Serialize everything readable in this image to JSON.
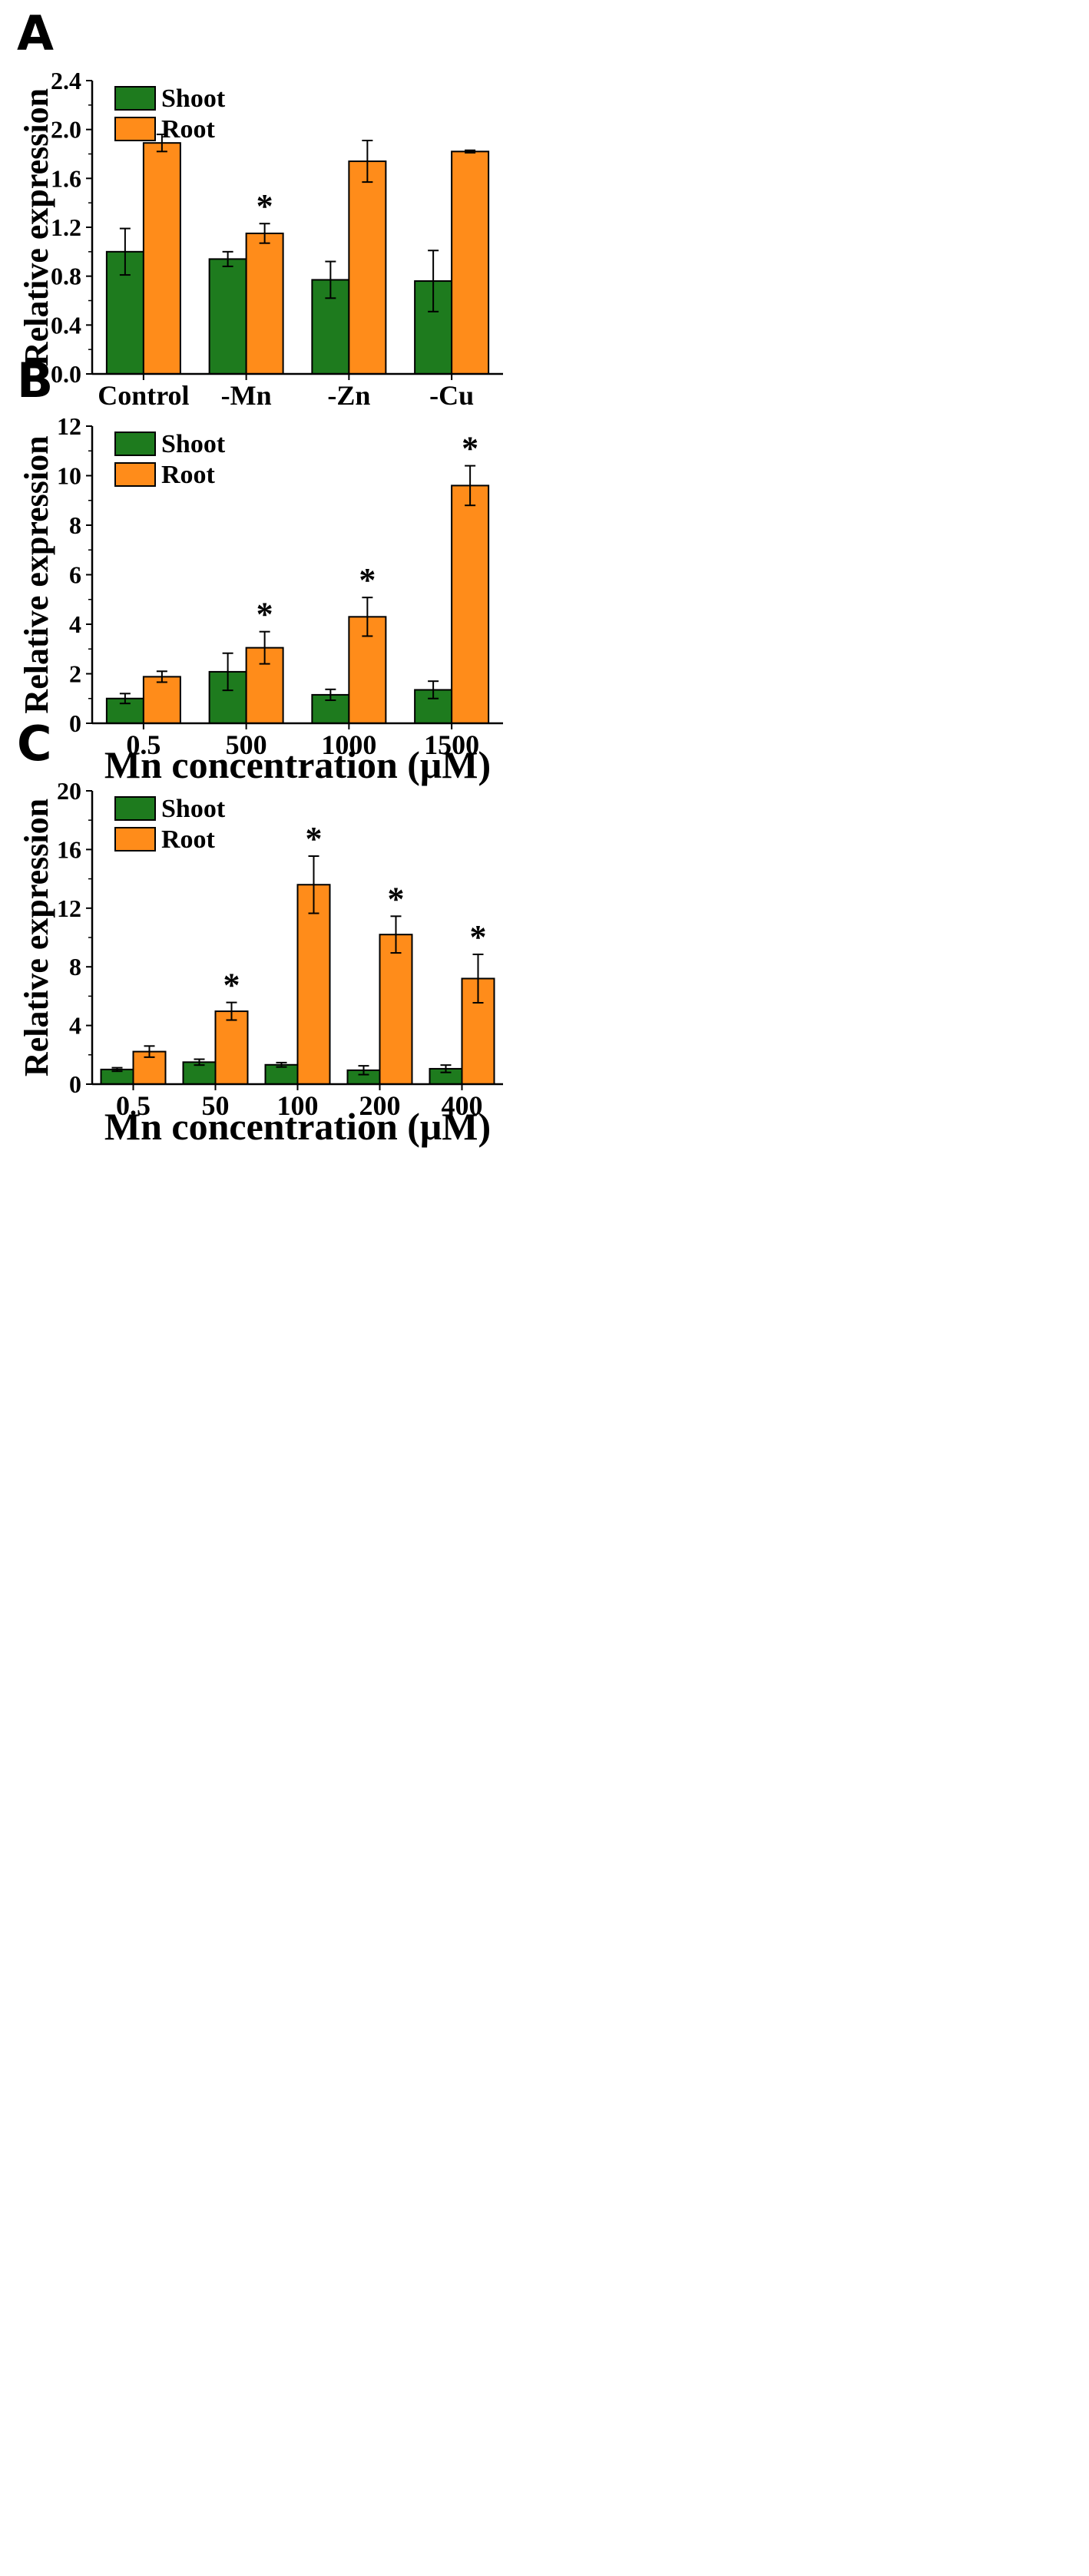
{
  "colors": {
    "shoot": "#1e7b1e",
    "root": "#ff8c1a",
    "axis": "#000000"
  },
  "chart_data": [
    {
      "type": "bar",
      "panel_label": "A",
      "categories": [
        "Control",
        "-Mn",
        "-Zn",
        "-Cu"
      ],
      "series": [
        {
          "name": "Shoot",
          "values": [
            1.0,
            0.94,
            0.77,
            0.76
          ],
          "errors": [
            0.19,
            0.06,
            0.15,
            0.25
          ]
        },
        {
          "name": "Root",
          "values": [
            1.89,
            1.15,
            1.74,
            1.82
          ],
          "errors": [
            0.07,
            0.08,
            0.17,
            0.01
          ]
        }
      ],
      "significant": {
        "Root": [
          false,
          true,
          false,
          false
        ]
      },
      "marker": "*",
      "xlabel": "",
      "ylabel": "Relative expression",
      "ylim": [
        0,
        2.4
      ],
      "yticks": [
        "0.0",
        "0.4",
        "0.8",
        "1.2",
        "1.6",
        "2.0",
        "2.4"
      ],
      "legend": "top-left"
    },
    {
      "type": "bar",
      "panel_label": "B",
      "categories": [
        "0.5",
        "500",
        "1000",
        "1500"
      ],
      "series": [
        {
          "name": "Shoot",
          "values": [
            1.0,
            2.08,
            1.15,
            1.35
          ],
          "errors": [
            0.2,
            0.75,
            0.22,
            0.35
          ]
        },
        {
          "name": "Root",
          "values": [
            1.88,
            3.05,
            4.3,
            9.6
          ],
          "errors": [
            0.22,
            0.65,
            0.78,
            0.8
          ]
        }
      ],
      "significant": {
        "Root": [
          false,
          true,
          true,
          true
        ]
      },
      "marker": "*",
      "xlabel": "Mn concentration (μM)",
      "ylabel": "Relative expression",
      "ylim": [
        0,
        12
      ],
      "yticks": [
        "0",
        "2",
        "4",
        "6",
        "8",
        "10",
        "12"
      ],
      "legend": "top-left"
    },
    {
      "type": "bar",
      "panel_label": "C",
      "categories": [
        "0.5",
        "50",
        "100",
        "200",
        "400"
      ],
      "series": [
        {
          "name": "Shoot",
          "values": [
            1.0,
            1.5,
            1.32,
            0.95,
            1.05
          ],
          "errors": [
            0.12,
            0.2,
            0.15,
            0.3,
            0.25
          ]
        },
        {
          "name": "Root",
          "values": [
            2.22,
            4.97,
            13.6,
            10.2,
            7.2
          ],
          "errors": [
            0.38,
            0.6,
            1.95,
            1.25,
            1.65
          ]
        }
      ],
      "significant": {
        "Root": [
          false,
          true,
          true,
          true,
          true
        ]
      },
      "marker": "*",
      "xlabel": "Mn concentration (μM)",
      "ylabel": "Relative expression",
      "ylim": [
        0,
        20
      ],
      "yticks": [
        "0",
        "4",
        "8",
        "12",
        "16",
        "20"
      ],
      "legend": "top-left"
    }
  ]
}
